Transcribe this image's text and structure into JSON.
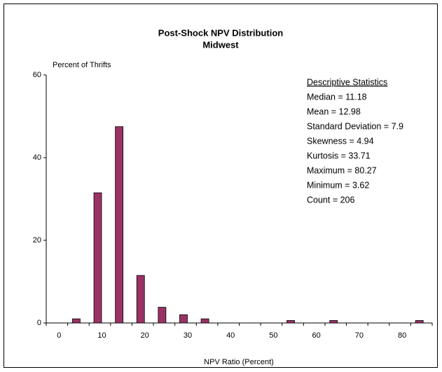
{
  "chart_data": {
    "type": "bar",
    "title": "Post-Shock NPV Distribution",
    "subtitle": "Midwest",
    "y_label": "Percent of Thrifts",
    "x_label": "NPV Ratio (Percent)",
    "categories": [
      "0",
      null,
      "10",
      null,
      "20",
      null,
      "30",
      null,
      "40",
      null,
      "50",
      null,
      "60",
      null,
      "70",
      null,
      "80",
      null
    ],
    "values": [
      0,
      1,
      31.5,
      47.5,
      11.5,
      3.8,
      2,
      1,
      0,
      0,
      0,
      0.6,
      0,
      0.6,
      0,
      0,
      0,
      0.6
    ],
    "color": "#993366",
    "ylim": [
      0,
      60
    ],
    "yticks": [
      0,
      20,
      40,
      60
    ],
    "grid": false,
    "annotations": {
      "heading": "Descriptive Statistics",
      "lines": [
        "Median = 11.18",
        "Mean = 12.98",
        "Standard Deviation = 7.9",
        "Skewness = 4.94",
        "Kurtosis = 33.71",
        "Maximum = 80.27",
        "Minimum = 3.62",
        "Count = 206"
      ]
    }
  }
}
